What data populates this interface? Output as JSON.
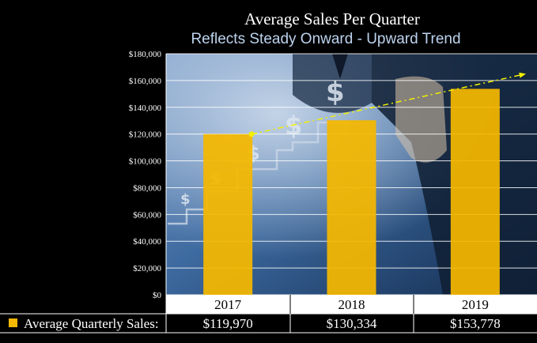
{
  "chart_data": {
    "type": "bar",
    "title": "Average Sales Per Quarter",
    "subtitle": "Reflects Steady Onward - Upward Trend",
    "categories": [
      "2017",
      "2018",
      "2019"
    ],
    "series": [
      {
        "name": "Average Quarterly Sales:",
        "values": [
          119970,
          130334,
          153778
        ]
      }
    ],
    "value_labels": [
      "$119,970",
      "$130,334",
      "$153,778"
    ],
    "y_ticks": [
      "$0",
      "$20,000",
      "$40,000",
      "$60,000",
      "$80,000",
      "$100,000",
      "$120,000",
      "$140,000",
      "$160,000",
      "$180,000"
    ],
    "ylim": [
      0,
      180000
    ],
    "grid": true,
    "trendline": {
      "start": 119970,
      "end": 165000
    },
    "colors": {
      "bar": "#f5b800",
      "trendline": "#f0f000",
      "background": "#000000",
      "grid": "#ffffff",
      "plot_bg": "#2e5a8c"
    },
    "legend_placement": "data-table-bottom"
  }
}
